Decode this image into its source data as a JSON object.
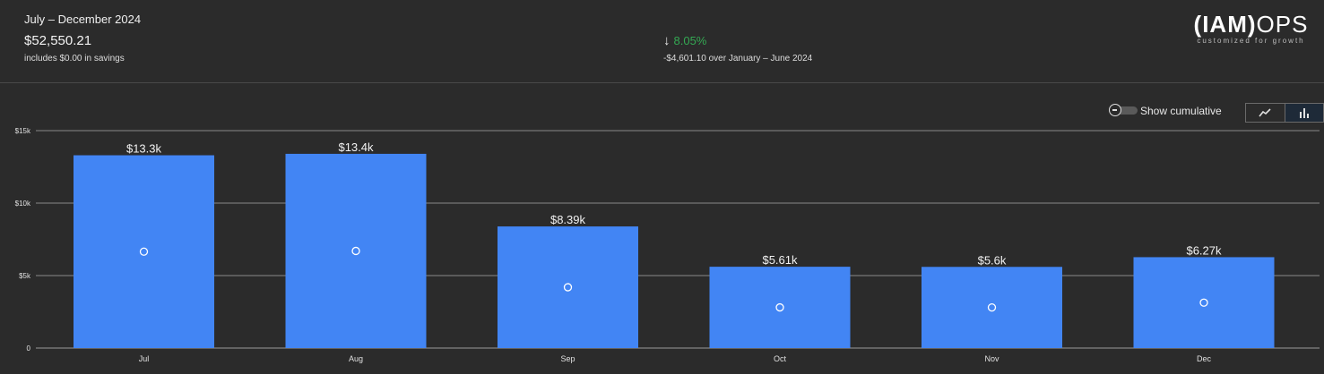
{
  "summary": {
    "period": "July – December 2024",
    "total": "$52,550.21",
    "savings_note": "includes $0.00 in savings",
    "change_percent": "8.05%",
    "change_direction": "down",
    "change_detail": "-$4,601.10 over January – June 2024"
  },
  "logo": {
    "main_bold": "(IAM)",
    "main_light": "OPS",
    "tagline": "customized for growth"
  },
  "controls": {
    "cumulative_label": "Show cumulative",
    "cumulative_on": false,
    "views": [
      "line-chart-icon",
      "bar-chart-icon"
    ],
    "active_view": "bar"
  },
  "colors": {
    "bar": "#4285f4",
    "positive": "#34a853"
  },
  "chart_data": {
    "type": "bar",
    "categories": [
      "Jul",
      "Aug",
      "Sep",
      "Oct",
      "Nov",
      "Dec"
    ],
    "values": [
      13300,
      13400,
      8390,
      5610,
      5600,
      6270
    ],
    "data_labels": [
      "$13.3k",
      "$13.4k",
      "$8.39k",
      "$5.61k",
      "$5.6k",
      "$6.27k"
    ],
    "y_ticks": [
      0,
      5000,
      10000,
      15000
    ],
    "y_tick_labels": [
      "0",
      "$5k",
      "$10k",
      "$15k"
    ],
    "ylim": [
      0,
      15000
    ],
    "grid": true
  }
}
